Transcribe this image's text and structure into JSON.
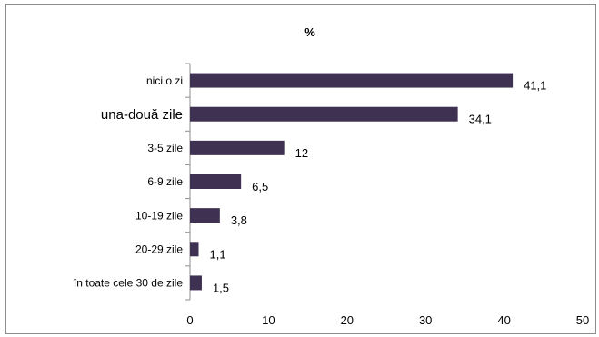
{
  "chart_data": {
    "type": "bar",
    "orientation": "horizontal",
    "title": "%",
    "categories": [
      "nici o zi",
      "una-două zile",
      "3-5 zile",
      "6-9 zile",
      "10-19 zile",
      "20-29 zile",
      "în toate cele 30 de zile"
    ],
    "values": [
      41.1,
      34.1,
      12,
      6.5,
      3.8,
      1.1,
      1.5
    ],
    "value_labels": [
      "41,1",
      "34,1",
      "12",
      "6,5",
      "3,8",
      "1,1",
      "1,5"
    ],
    "xlim": [
      0,
      50
    ],
    "x_ticks": [
      "0",
      "10",
      "20",
      "30",
      "40",
      "50"
    ],
    "xlabel": "",
    "ylabel": "",
    "grid": false,
    "bar_color": "#3f3151"
  }
}
